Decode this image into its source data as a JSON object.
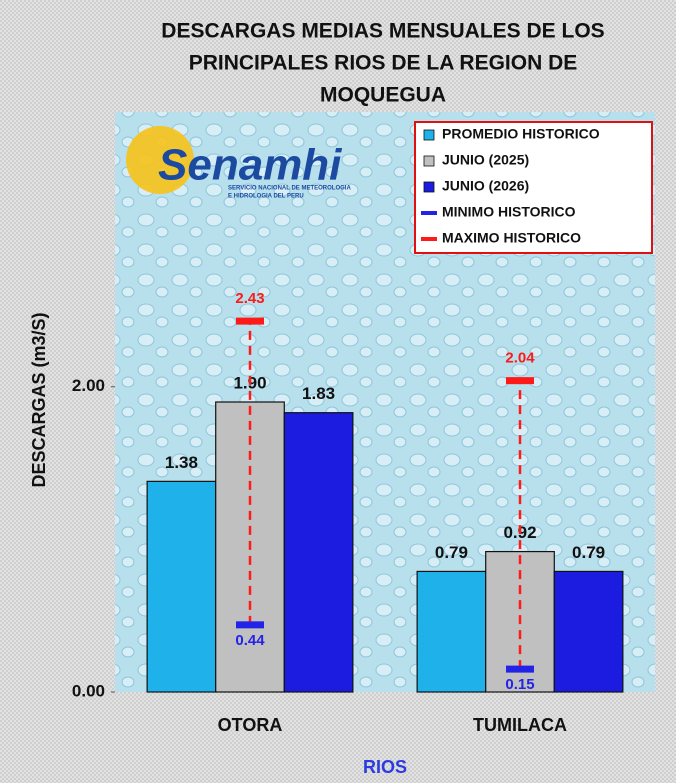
{
  "chart_data": {
    "type": "bar",
    "title": [
      "DESCARGAS MEDIAS MENSUALES DE LOS",
      "PRINCIPALES RIOS DE LA REGION DE",
      "MOQUEGUA"
    ],
    "logo_text": "Senamhi",
    "logo_subtitle": [
      "SERVICIO NACIONAL DE METEOROLOGIA",
      "E HIDROLOGIA DEL PERU"
    ],
    "x_label": "RIOS",
    "y_label": "DESCARGAS  (m3/S)",
    "categories": [
      "OTORA",
      "TUMILACA"
    ],
    "ylim": [
      0,
      3.8
    ],
    "yticks": [
      {
        "value": 0,
        "label": "0.00"
      },
      {
        "value": 2,
        "label": "2.00"
      }
    ],
    "legend": "top-right",
    "series": [
      {
        "name": "PROMEDIO HISTORICO",
        "color": "#1fb2ea",
        "style": "bar",
        "values": [
          1.38,
          0.79
        ],
        "value_labels": [
          "1.38",
          "0.79"
        ]
      },
      {
        "name": "JUNIO (2025)",
        "color": "#c0c0c0",
        "style": "bar",
        "values": [
          1.9,
          0.92
        ],
        "value_labels": [
          "1.90",
          "0.92"
        ]
      },
      {
        "name": "JUNIO (2026)",
        "color": "#1c1ce0",
        "style": "bar",
        "values": [
          1.83,
          0.79
        ],
        "value_labels": [
          "1.83",
          "0.79"
        ]
      },
      {
        "name": "MINIMO HISTORICO",
        "color": "#2323e8",
        "style": "marker",
        "values": [
          0.44,
          0.15
        ],
        "value_labels": [
          "0.44",
          "0.15"
        ]
      },
      {
        "name": "MAXIMO HISTORICO",
        "color": "#ff1a1a",
        "style": "marker",
        "values": [
          2.43,
          2.04
        ],
        "value_labels": [
          "2.43",
          "2.04"
        ]
      }
    ]
  }
}
